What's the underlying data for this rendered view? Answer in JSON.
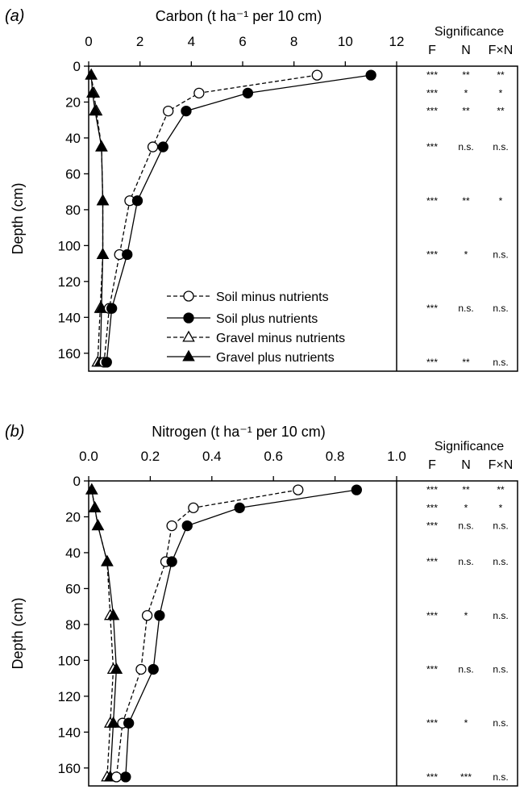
{
  "chart_data": [
    {
      "type": "line",
      "panel_label": "(a)",
      "xlabel": "Carbon (t ha⁻¹ per 10 cm)",
      "ylabel": "Depth (cm)",
      "xlim": [
        0,
        12
      ],
      "ylim": [
        170,
        0
      ],
      "x_ticks": [
        "0",
        "2",
        "4",
        "6",
        "8",
        "10",
        "12"
      ],
      "y_ticks": [
        "0",
        "20",
        "40",
        "60",
        "80",
        "100",
        "120",
        "140",
        "160"
      ],
      "depths": [
        5,
        15,
        25,
        45,
        75,
        105,
        135,
        165
      ],
      "series": [
        {
          "name": "Soil minus nutrients",
          "marker": "open-circle",
          "line": "dashed",
          "values": [
            8.9,
            4.3,
            3.1,
            2.5,
            1.6,
            1.2,
            0.8,
            0.6
          ]
        },
        {
          "name": "Soil plus nutrients",
          "marker": "filled-circle",
          "line": "solid",
          "values": [
            11.0,
            6.2,
            3.8,
            2.9,
            1.9,
            1.5,
            0.9,
            0.7
          ]
        },
        {
          "name": "Gravel minus nutrients",
          "marker": "open-triangle",
          "line": "dashed",
          "values": [
            0.1,
            0.2,
            0.3,
            0.5,
            0.55,
            0.55,
            0.45,
            0.35
          ]
        },
        {
          "name": "Gravel plus nutrients",
          "marker": "filled-triangle",
          "line": "solid",
          "values": [
            0.1,
            0.15,
            0.25,
            0.5,
            0.55,
            0.55,
            0.5,
            0.45
          ]
        }
      ],
      "significance": {
        "title": "Significance",
        "columns": [
          "F",
          "N",
          "F×N"
        ],
        "rows": [
          [
            "***",
            "**",
            "**"
          ],
          [
            "***",
            "*",
            "*"
          ],
          [
            "***",
            "**",
            "**"
          ],
          [
            "***",
            "n.s.",
            "n.s."
          ],
          [
            "***",
            "**",
            "*"
          ],
          [
            "***",
            "*",
            "n.s."
          ],
          [
            "***",
            "n.s.",
            "n.s."
          ],
          [
            "***",
            "**",
            "n.s."
          ]
        ]
      }
    },
    {
      "type": "line",
      "panel_label": "(b)",
      "xlabel": "Nitrogen (t ha⁻¹ per 10 cm)",
      "ylabel": "Depth (cm)",
      "xlim": [
        0,
        1.0
      ],
      "ylim": [
        170,
        0
      ],
      "x_ticks": [
        "0.0",
        "0.2",
        "0.4",
        "0.6",
        "0.8",
        "1.0"
      ],
      "y_ticks": [
        "0",
        "20",
        "40",
        "60",
        "80",
        "100",
        "120",
        "140",
        "160"
      ],
      "depths": [
        5,
        15,
        25,
        45,
        75,
        105,
        135,
        165
      ],
      "series": [
        {
          "name": "Soil minus nutrients",
          "marker": "open-circle",
          "line": "dashed",
          "values": [
            0.68,
            0.34,
            0.27,
            0.25,
            0.19,
            0.17,
            0.11,
            0.09
          ]
        },
        {
          "name": "Soil plus nutrients",
          "marker": "filled-circle",
          "line": "solid",
          "values": [
            0.87,
            0.49,
            0.32,
            0.27,
            0.23,
            0.21,
            0.13,
            0.12
          ]
        },
        {
          "name": "Gravel minus nutrients",
          "marker": "open-triangle",
          "line": "dashed",
          "values": [
            0.01,
            0.02,
            0.03,
            0.06,
            0.07,
            0.08,
            0.07,
            0.06
          ]
        },
        {
          "name": "Gravel plus nutrients",
          "marker": "filled-triangle",
          "line": "solid",
          "values": [
            0.01,
            0.02,
            0.03,
            0.06,
            0.08,
            0.09,
            0.08,
            0.07
          ]
        }
      ],
      "significance": {
        "title": "Significance",
        "columns": [
          "F",
          "N",
          "F×N"
        ],
        "rows": [
          [
            "***",
            "**",
            "**"
          ],
          [
            "***",
            "*",
            "*"
          ],
          [
            "***",
            "n.s.",
            "n.s."
          ],
          [
            "***",
            "n.s.",
            "n.s."
          ],
          [
            "***",
            "*",
            "n.s."
          ],
          [
            "***",
            "n.s.",
            "n.s."
          ],
          [
            "***",
            "*",
            "n.s."
          ],
          [
            "***",
            "***",
            "n.s."
          ]
        ]
      }
    }
  ]
}
